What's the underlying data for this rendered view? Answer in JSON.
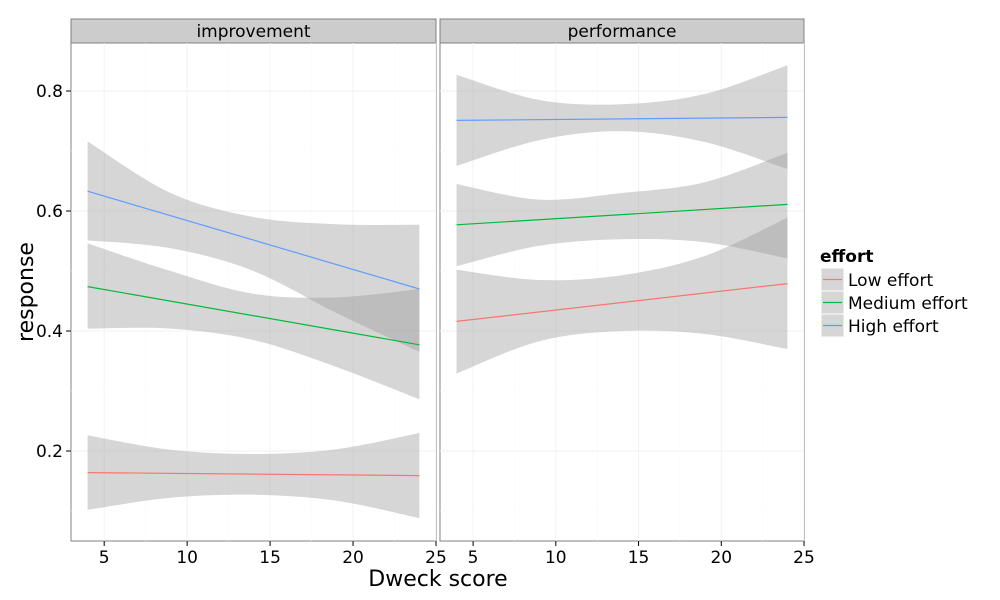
{
  "chart_data": {
    "type": "line",
    "xlabel": "Dweck score",
    "ylabel": "response",
    "xlim": [
      3,
      25
    ],
    "ylim": [
      0.05,
      0.88
    ],
    "x_ticks": [
      5,
      10,
      15,
      20,
      25
    ],
    "y_ticks": [
      0.2,
      0.4,
      0.6,
      0.8
    ],
    "grid": true,
    "legend_position": "right",
    "legend": {
      "title": "effort",
      "entries": [
        {
          "name": "Low effort",
          "color": "#F8766D"
        },
        {
          "name": "Medium effort",
          "color": "#00BA38"
        },
        {
          "name": "High effort",
          "color": "#619CFF"
        }
      ]
    },
    "panels": [
      {
        "title": "improvement",
        "series": [
          {
            "name": "Low effort",
            "color": "#F8766D",
            "x": [
              4,
              24
            ],
            "y": [
              0.164,
              0.159
            ],
            "band_x": [
              4,
              9,
              14,
              19,
              24
            ],
            "band_lower": [
              0.102,
              0.122,
              0.127,
              0.117,
              0.088
            ],
            "band_upper": [
              0.226,
              0.202,
              0.195,
              0.203,
              0.23
            ]
          },
          {
            "name": "Medium effort",
            "color": "#00BA38",
            "x": [
              4,
              24
            ],
            "y": [
              0.474,
              0.377
            ],
            "band_x": [
              4,
              9,
              14,
              19,
              24
            ],
            "band_lower": [
              0.404,
              0.404,
              0.385,
              0.34,
              0.286
            ],
            "band_upper": [
              0.546,
              0.5,
              0.462,
              0.456,
              0.47
            ]
          },
          {
            "name": "High effort",
            "color": "#619CFF",
            "x": [
              4,
              24
            ],
            "y": [
              0.633,
              0.47
            ],
            "band_x": [
              4,
              9,
              14,
              19,
              24
            ],
            "band_lower": [
              0.551,
              0.538,
              0.5,
              0.43,
              0.365
            ],
            "band_upper": [
              0.716,
              0.63,
              0.59,
              0.578,
              0.577
            ]
          }
        ]
      },
      {
        "title": "performance",
        "series": [
          {
            "name": "Low effort",
            "color": "#F8766D",
            "x": [
              4,
              24
            ],
            "y": [
              0.416,
              0.479
            ],
            "band_x": [
              4,
              9,
              14,
              19,
              24
            ],
            "band_lower": [
              0.329,
              0.383,
              0.4,
              0.395,
              0.37
            ],
            "band_upper": [
              0.502,
              0.485,
              0.493,
              0.525,
              0.589
            ]
          },
          {
            "name": "Medium effort",
            "color": "#00BA38",
            "x": [
              4,
              24
            ],
            "y": [
              0.577,
              0.611
            ],
            "band_x": [
              4,
              9,
              14,
              19,
              24
            ],
            "band_lower": [
              0.508,
              0.542,
              0.553,
              0.548,
              0.521
            ],
            "band_upper": [
              0.645,
              0.619,
              0.63,
              0.648,
              0.697
            ]
          },
          {
            "name": "High effort",
            "color": "#619CFF",
            "x": [
              4,
              24
            ],
            "y": [
              0.751,
              0.756
            ],
            "band_x": [
              4,
              9,
              14,
              19,
              24
            ],
            "band_lower": [
              0.675,
              0.718,
              0.733,
              0.715,
              0.67
            ],
            "band_upper": [
              0.827,
              0.785,
              0.778,
              0.795,
              0.843
            ]
          }
        ]
      }
    ]
  }
}
